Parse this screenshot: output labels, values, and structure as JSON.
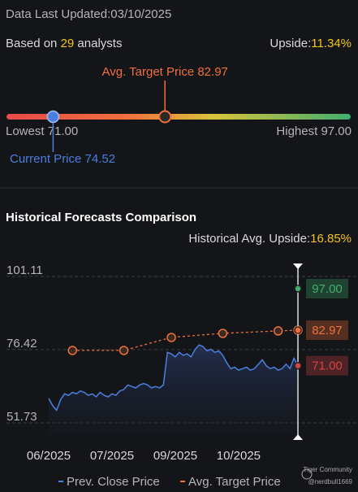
{
  "header": {
    "last_updated_label": "Data Last Updated:",
    "last_updated": "03/10/2025"
  },
  "summary": {
    "based_on": "Based on",
    "analysts_count": 29,
    "analysts": "analysts",
    "upside_label": "Upside:",
    "upside": {
      "value": 11.34,
      "label": "11.34%"
    }
  },
  "target_range": {
    "avg_label": "Avg. Target Price",
    "avg": 82.97,
    "lowest_label": "Lowest",
    "lowest": {
      "value": 71,
      "label": "71.00"
    },
    "highest_label": "Highest",
    "highest": {
      "value": 97,
      "label": "97.00"
    },
    "current_label": "Current Price",
    "current": 74.52
  },
  "chart_data": {
    "type": "line",
    "title": "Historical Forecasts Comparison",
    "subtitle_label": "Historical Avg. Upside:",
    "subtitle_value": {
      "value": 16.85,
      "label": "16.85%"
    },
    "xlim": [
      0,
      63
    ],
    "xticks": [
      {
        "value": 0,
        "label": "06/2025"
      },
      {
        "value": 16,
        "label": "07/2025"
      },
      {
        "value": 32,
        "label": "09/2025"
      },
      {
        "value": 48,
        "label": "10/2025"
      }
    ],
    "ylim": [
      47.6,
      105.2
    ],
    "yticks": [
      51.73,
      76.42,
      101.11
    ],
    "grid": true,
    "series": [
      {
        "name": "Prev. Close Price",
        "color": "#4a7fe0",
        "values": [
          60.0,
          57.5,
          56.0,
          59.5,
          61.5,
          61.0,
          62.0,
          61.5,
          62.5,
          62.0,
          61.0,
          61.5,
          60.5,
          62.0,
          61.0,
          60.5,
          61.5,
          61.0,
          62.5,
          63.0,
          64.5,
          64.0,
          63.5,
          64.5,
          65.0,
          64.5,
          63.5,
          64.0,
          63.5,
          64.5,
          75.5,
          75.0,
          74.0,
          75.5,
          74.5,
          75.0,
          74.0,
          76.5,
          78.0,
          77.5,
          76.0,
          76.5,
          75.5,
          76.0,
          74.5,
          72.0,
          70.0,
          70.5,
          69.5,
          70.0,
          70.5,
          69.5,
          70.0,
          71.5,
          73.0,
          71.0,
          70.0,
          70.5,
          69.5,
          70.0,
          71.5,
          70.0,
          73.5,
          71.0
        ]
      },
      {
        "name": "Avg. Target Price",
        "color": "#f0703c",
        "dashed": true,
        "x": [
          6,
          19,
          31,
          44,
          58,
          63
        ],
        "values": [
          76.14,
          76.14,
          80.53,
          81.9,
          82.73,
          82.97
        ]
      }
    ],
    "end_markers": [
      {
        "value": 97,
        "label": "97.00",
        "color": "#3fae6e"
      },
      {
        "value": 82.97,
        "color": "#f0703c"
      },
      {
        "value": 71,
        "label": "71.00",
        "color": "#d64545"
      }
    ]
  },
  "watermark": {
    "brand": "Tiger Community",
    "user": "@nerdbull1669"
  }
}
